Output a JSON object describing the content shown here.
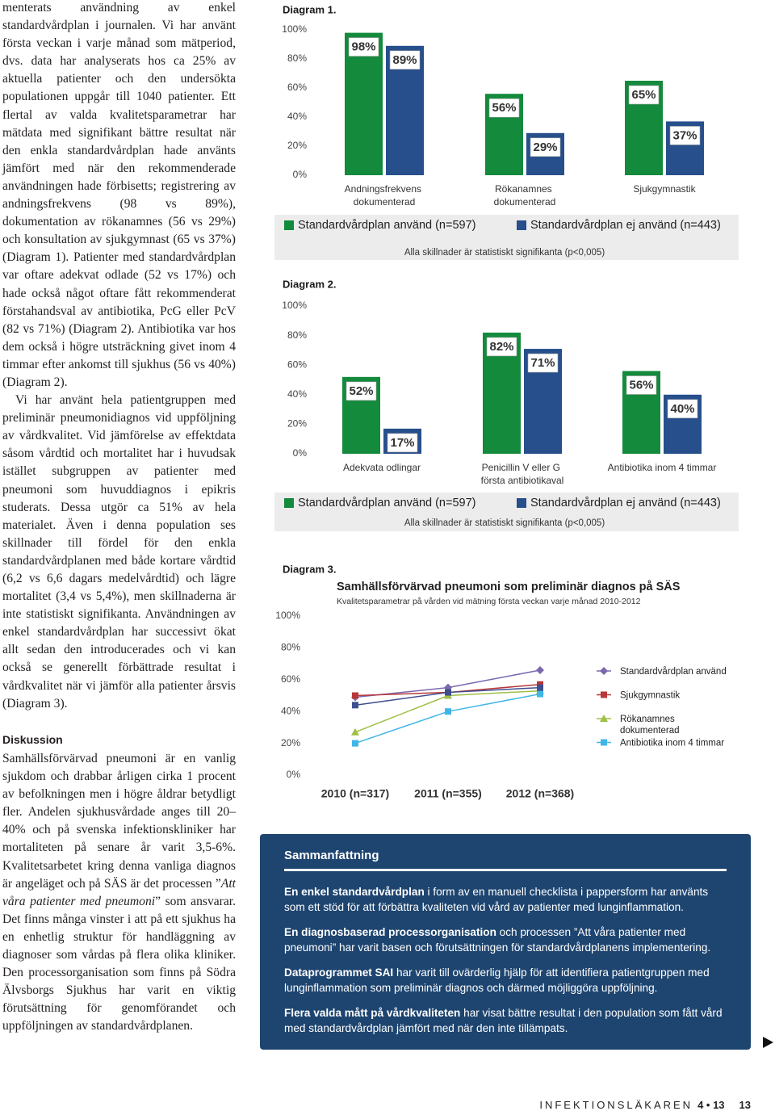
{
  "body": {
    "paragraphs": [
      "menterats användning av enkel standardvårdplan i journalen. Vi har använt första veckan i varje månad som mätperiod, dvs. data har analyserats hos ca 25% av aktuella patienter och den undersökta populationen uppgår till 1040 patienter. Ett flertal av valda kvalitetsparametrar har mätdata med signifikant bättre resultat när den enkla standardvårdplan hade använts jämfört med när den rekommenderade användningen hade förbisetts; registrering av andningsfrekvens (98 vs 89%), dokumentation av rökanamnes (56 vs 29%) och konsultation av sjukgymnast (65 vs 37%) (Diagram 1). Patienter med standardvårdplan var oftare adekvat odlade (52 vs 17%) och hade också något oftare fått rekommenderat förstahandsval av antibiotika, PcG eller PcV (82 vs 71%) (Diagram 2). Antibiotika var hos dem också i högre utsträckning givet inom 4 timmar efter ankomst till sjukhus (56 vs 40%) (Diagram 2).",
      "Vi har använt hela patientgruppen med preliminär pneumonidiagnos vid uppföljning av vårdkvalitet. Vid jämförelse av effektdata såsom vårdtid och mortalitet har i huvudsak istället subgruppen av patienter med pneumoni som huvuddiagnos i epikris studerats. Dessa utgör ca 51% av hela materialet. Även i denna population ses skillnader till fördel för den enkla standardvårdplanen med både kortare vårdtid (6,2 vs 6,6 dagars medelvårdtid) och lägre mortalitet (3,4 vs 5,4%), men skillnaderna är inte statistiskt signifikanta. Användningen av enkel standardvårdplan har successivt ökat allt sedan den introducerades och vi kan också se generellt förbättrade resultat i vårdkvalitet när vi jämför alla patienter årsvis (Diagram 3)."
    ]
  },
  "discussion": {
    "heading": "Diskussion",
    "text_before": "Samhällsförvärvad pneumoni är en vanlig sjukdom och drabbar årligen cirka 1 procent av befolkningen men i högre åldrar betydligt fler. Andelen sjukhusvårdade anges till 20–40% och på svenska infektionskliniker har mortaliteten på senare år varit 3,5-6%. Kvalitetsarbetet kring denna vanliga diagnos är angeläget och på SÄS är det processen ”",
    "italic": "Att våra patienter med pneumoni",
    "text_after": "” som ansvarar. Det finns många vinster i att på ett sjukhus ha en enhetlig struktur för handläggning av diagnoser som vårdas på flera olika kliniker. Den processorganisation som finns på Södra Älvsborgs Sjukhus har varit en viktig förutsättning för genomförandet och uppföljningen av standardvårdplanen."
  },
  "chart_data": [
    {
      "type": "bar",
      "label": "Diagram 1.",
      "categories": [
        "Andningsfrekvens dokumenterad",
        "Rökanamnes dokumenterad",
        "Sjukgymnastik"
      ],
      "series": [
        {
          "name": "Standardvårdplan använd (n=597)",
          "color": "#138a3c",
          "values": [
            98,
            56,
            65
          ],
          "value_labels": [
            "98%",
            "56%",
            "65%"
          ]
        },
        {
          "name": "Standardvårdplan ej använd (n=443)",
          "color": "#264f8c",
          "values": [
            89,
            29,
            37
          ],
          "value_labels": [
            "89%",
            "29%",
            "37%"
          ]
        }
      ],
      "ylim": [
        0,
        100
      ],
      "yticks": [
        {
          "value": 0,
          "label": "0%"
        },
        {
          "value": 20,
          "label": "20%"
        },
        {
          "value": 40,
          "label": "40%"
        },
        {
          "value": 60,
          "label": "60%"
        },
        {
          "value": 80,
          "label": "80%"
        },
        {
          "value": 100,
          "label": "100%"
        }
      ],
      "note": "Alla skillnader är statistiskt signifikanta (p<0,005)"
    },
    {
      "type": "bar",
      "label": "Diagram 2.",
      "categories": [
        "Adekvata odlingar",
        "Penicillin V eller G första antibiotikaval",
        "Antibiotika inom 4 timmar"
      ],
      "series": [
        {
          "name": "Standardvårdplan använd (n=597)",
          "color": "#138a3c",
          "values": [
            52,
            82,
            56
          ],
          "value_labels": [
            "52%",
            "82%",
            "56%"
          ]
        },
        {
          "name": "Standardvårdplan ej använd (n=443)",
          "color": "#264f8c",
          "values": [
            17,
            71,
            40
          ],
          "value_labels": [
            "17%",
            "71%",
            "40%"
          ]
        }
      ],
      "ylim": [
        0,
        100
      ],
      "yticks": [
        {
          "value": 0,
          "label": "0%"
        },
        {
          "value": 20,
          "label": "20%"
        },
        {
          "value": 40,
          "label": "40%"
        },
        {
          "value": 60,
          "label": "60%"
        },
        {
          "value": 80,
          "label": "80%"
        },
        {
          "value": 100,
          "label": "100%"
        }
      ],
      "note": "Alla skillnader är statistiskt signifikanta (p<0,005)"
    },
    {
      "type": "line",
      "label": "Diagram 3.",
      "title": "Samhällsförvärvad pneumoni som preliminär diagnos på SÄS",
      "subtitle": "Kvalitetsparametrar på vården vid mätning första veckan varje månad 2010-2012",
      "categories": [
        "2010 (n=317)",
        "2011 (n=355)",
        "2012 (n=368)"
      ],
      "series": [
        {
          "name": "Standardvårdplan använd",
          "color": "#7a68b0",
          "marker": "diamond",
          "values": [
            49,
            55,
            66
          ]
        },
        {
          "name": "Sjukgymnastik",
          "color": "#b8373a",
          "marker": "square",
          "values": [
            50,
            52,
            57
          ]
        },
        {
          "name": "Rökanamnes dokumenterad",
          "color": "#9fbf45",
          "marker": "triangle",
          "values": [
            27,
            50,
            53
          ]
        },
        {
          "name": "Antibiotika inom 4 timmar",
          "color": "#41b6e6",
          "marker": "square",
          "values": [
            20,
            40,
            51
          ]
        },
        {
          "color": "#3e4f8f",
          "marker": "square",
          "values": [
            44,
            52,
            55
          ]
        }
      ],
      "ylim": [
        0,
        100
      ],
      "yticks": [
        {
          "value": 0,
          "label": "0%"
        },
        {
          "value": 20,
          "label": "20%"
        },
        {
          "value": 40,
          "label": "40%"
        },
        {
          "value": 60,
          "label": "60%"
        },
        {
          "value": 80,
          "label": "80%"
        },
        {
          "value": 100,
          "label": "100%"
        }
      ]
    }
  ],
  "summary": {
    "title": "Sammanfattning",
    "items": [
      {
        "bold": "En enkel standardvårdplan",
        "text": " i form av en manuell checklista i pappersform har använts som ett stöd för att förbättra kvaliteten vid vård av patienter med lunginflammation."
      },
      {
        "bold": "En diagnosbaserad processorganisation",
        "text": " och processen ”Att våra patienter med pneumoni” har varit basen och förutsättningen för standardvårdplanens implementering."
      },
      {
        "bold": "Dataprogrammet SAI",
        "text": " har varit till ovärderlig hjälp för att identifiera patientgruppen med lunginflammation som preliminär diagnos och därmed möjliggöra uppföljning."
      },
      {
        "bold": "Flera valda mått på vårdkvaliteten",
        "text": " har visat bättre resultat i den population som fått vård med standardvårdplan jämfört med när den inte tillämpats."
      }
    ]
  },
  "footer": {
    "journal": "INFEKTIONSLÄKAREN",
    "issue": "4 • 13",
    "page": "13"
  }
}
